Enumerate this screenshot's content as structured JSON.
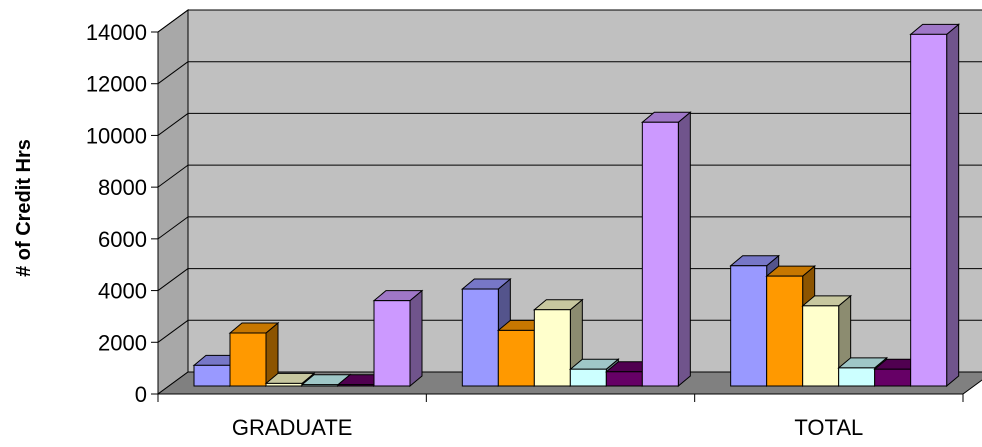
{
  "chart_data": {
    "type": "bar",
    "title": "",
    "xlabel": "",
    "ylabel": "# of Credit Hrs",
    "ylim": [
      0,
      14000
    ],
    "yticks": [
      0,
      2000,
      4000,
      6000,
      8000,
      10000,
      12000,
      14000
    ],
    "categories": [
      "GRADUATE",
      "",
      "TOTAL"
    ],
    "grid": true,
    "legend": "none",
    "series": [
      {
        "color": "#9999ff",
        "values": [
          800,
          3750,
          4650
        ]
      },
      {
        "color": "#ff9900",
        "values": [
          2050,
          2150,
          4250
        ]
      },
      {
        "color": "#ffffcc",
        "values": [
          100,
          2950,
          3100
        ]
      },
      {
        "color": "#ccffff",
        "values": [
          50,
          650,
          700
        ]
      },
      {
        "color": "#660066",
        "values": [
          50,
          550,
          650
        ]
      },
      {
        "color": "#cc99ff",
        "values": [
          3300,
          10200,
          13600
        ]
      }
    ]
  }
}
